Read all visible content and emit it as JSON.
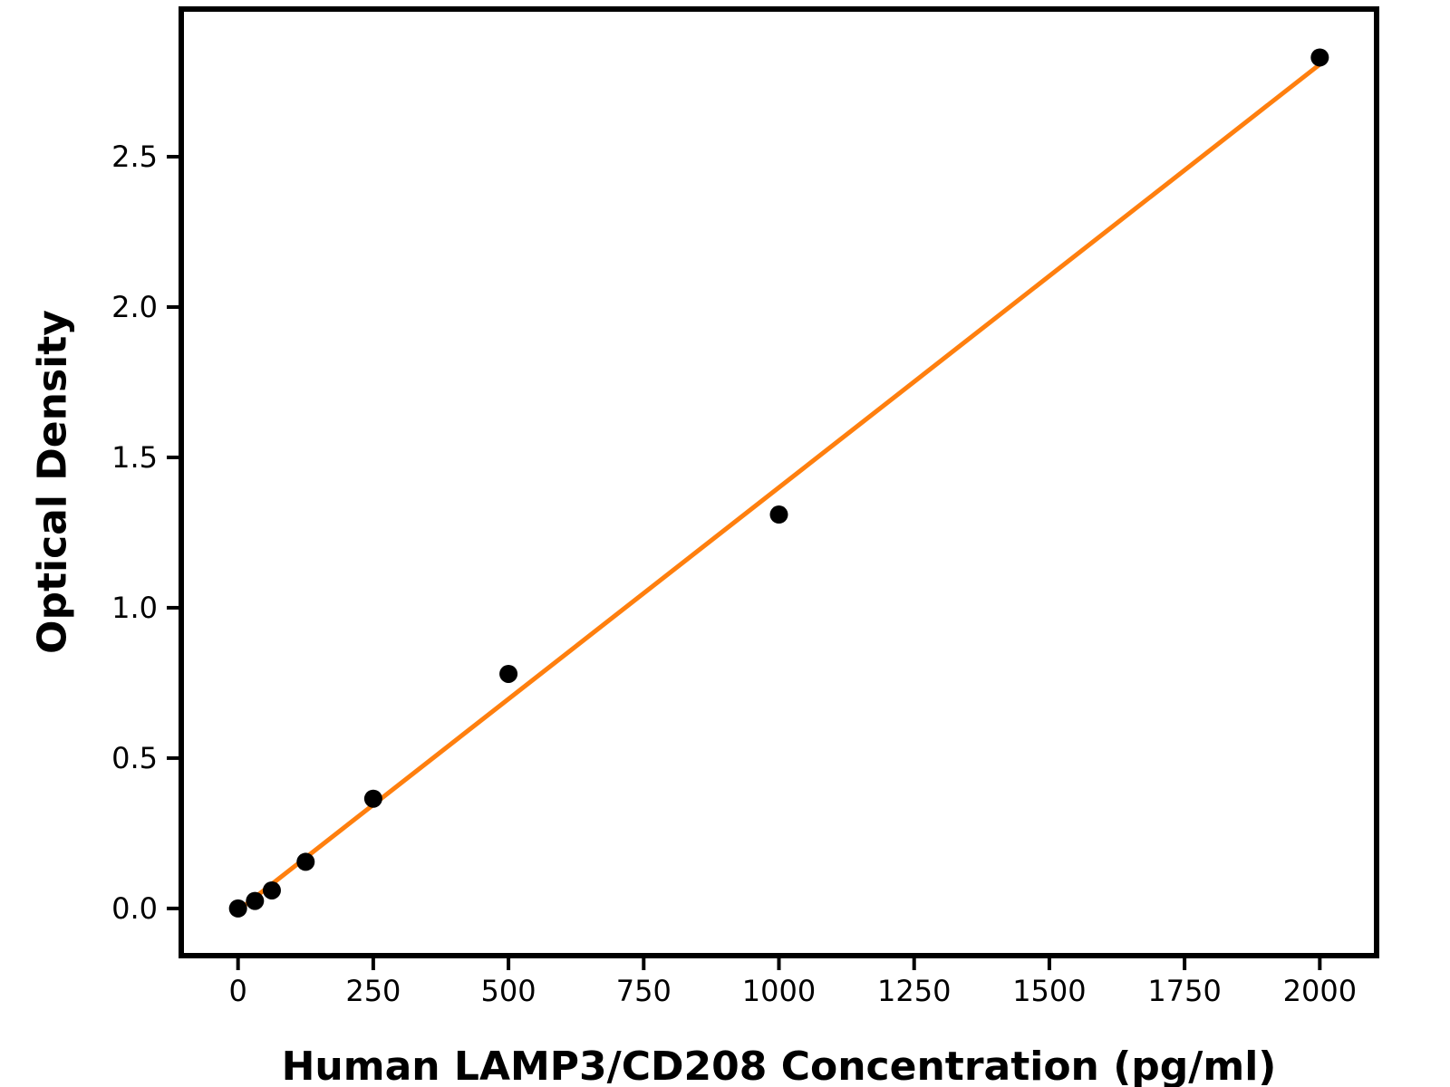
{
  "figure": {
    "background": "#ffffff"
  },
  "chart_data": {
    "type": "scatter",
    "title": "",
    "xlabel": "Human LAMP3/CD208 Concentration (pg/ml)",
    "ylabel": "Optical Density",
    "categories": null,
    "x": [
      0,
      31.25,
      62.5,
      125,
      250,
      500,
      1000,
      2000
    ],
    "y": [
      0.0,
      0.025,
      0.06,
      0.155,
      0.365,
      0.78,
      1.31,
      2.83
    ],
    "series": [
      {
        "name": "linear-fit-line",
        "kind": "line",
        "x": [
          0,
          2000
        ],
        "y": [
          -0.007,
          2.807
        ],
        "color": "#ff7f0e",
        "stroke_width": 5
      },
      {
        "name": "standard-curve-points",
        "kind": "scatter",
        "x": [
          0,
          31.25,
          62.5,
          125,
          250,
          500,
          1000,
          2000
        ],
        "y": [
          0.0,
          0.025,
          0.06,
          0.155,
          0.365,
          0.78,
          1.31,
          2.83
        ],
        "color": "#000000",
        "marker_radius": 10
      }
    ],
    "xlim": [
      -105,
      2105
    ],
    "ylim": [
      -0.157,
      2.991
    ],
    "xticks": [
      0,
      250,
      500,
      750,
      1000,
      1250,
      1500,
      1750,
      2000
    ],
    "xtick_labels": [
      "0",
      "250",
      "500",
      "750",
      "1000",
      "1250",
      "1500",
      "1750",
      "2000"
    ],
    "yticks": [
      0,
      0.5,
      1.0,
      1.5,
      2.0,
      2.5
    ],
    "ytick_labels": [
      "0.0",
      "0.5",
      "1.0",
      "1.5",
      "2.0",
      "2.5"
    ],
    "grid": false,
    "legend": null,
    "axis_color": "#000000",
    "tick_label_color": "#000000",
    "spine_width": 6,
    "tick_width": 4,
    "tick_length": 13,
    "tick_font_px": 32
  }
}
